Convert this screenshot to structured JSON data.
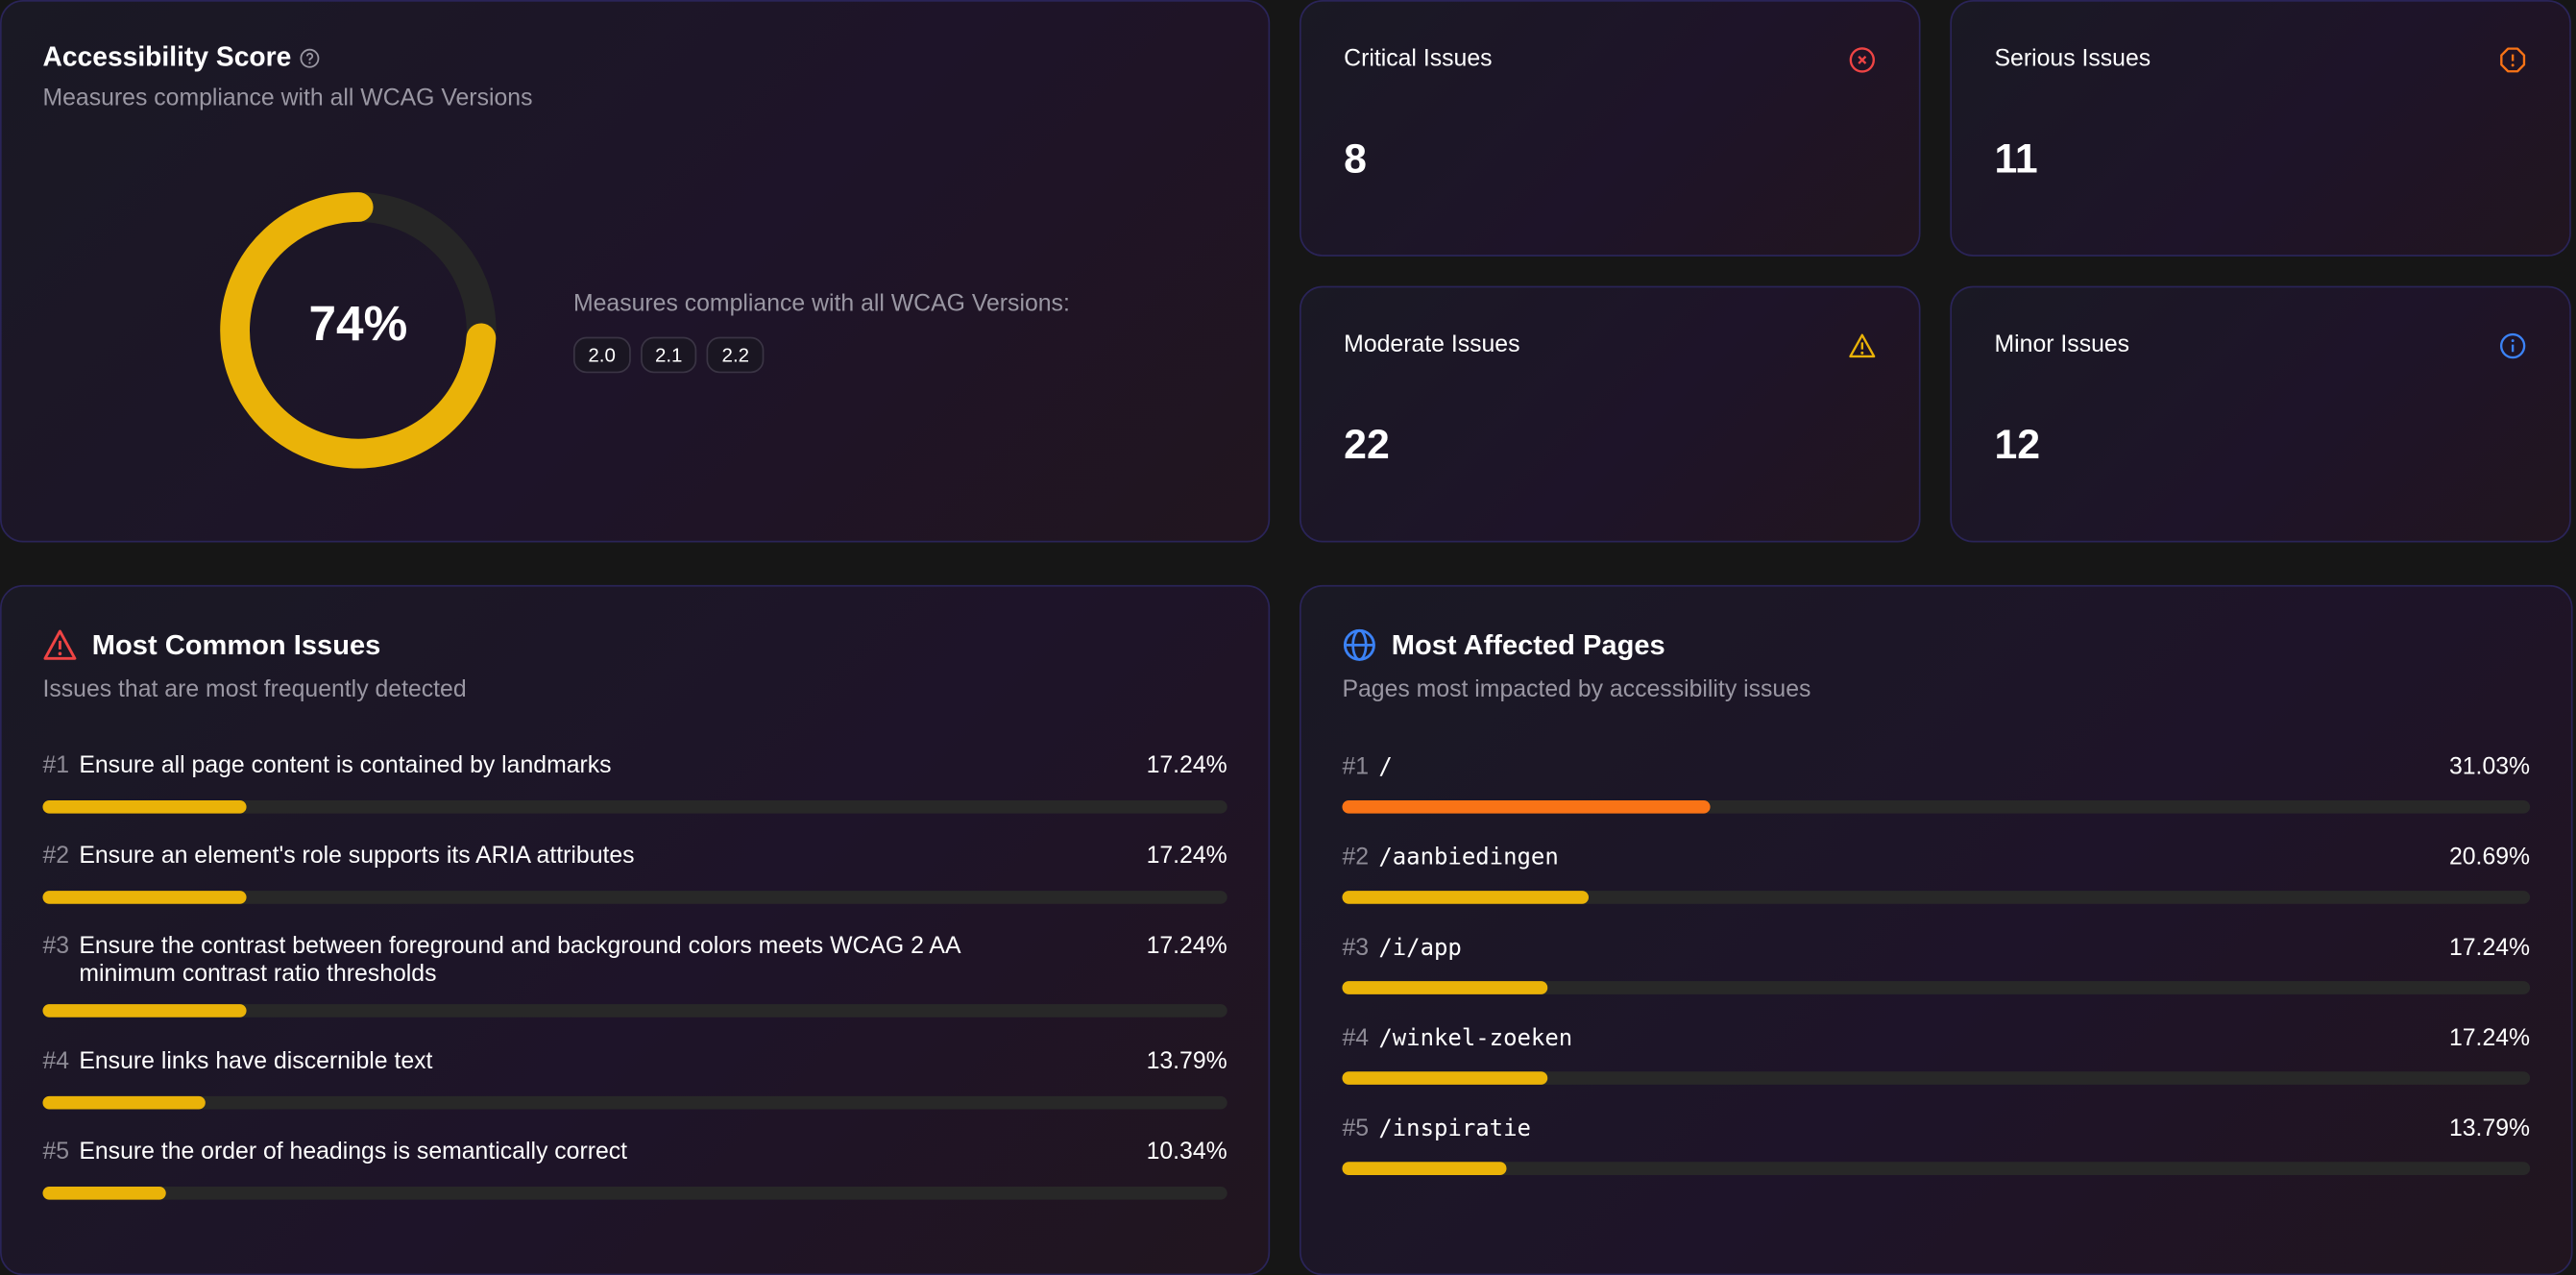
{
  "score": {
    "title": "Accessibility Score",
    "subtitle": "Measures compliance with all WCAG Versions",
    "value_label": "74%",
    "value": 74,
    "versions_label": "Measures compliance with all WCAG Versions:",
    "versions": [
      "2.0",
      "2.1",
      "2.2"
    ],
    "colors": {
      "fill": "#eab308",
      "track": "#262626"
    }
  },
  "issue_counts": [
    {
      "label": "Critical Issues",
      "value": "8",
      "icon": "x-circle-icon",
      "color": "#ef4444"
    },
    {
      "label": "Serious Issues",
      "value": "11",
      "icon": "alert-octagon-icon",
      "color": "#f97316"
    },
    {
      "label": "Moderate Issues",
      "value": "22",
      "icon": "warning-triangle-icon",
      "color": "#eab308"
    },
    {
      "label": "Minor Issues",
      "value": "12",
      "icon": "info-circle-icon",
      "color": "#3b82f6"
    }
  ],
  "common_issues": {
    "title": "Most Common Issues",
    "subtitle": "Issues that are most frequently detected",
    "icon": "warning-triangle-icon",
    "items": [
      {
        "rank": "#1",
        "text": "Ensure all page content is contained by landmarks",
        "pct_label": "17.24%",
        "pct": 17.24,
        "color": "#eab308"
      },
      {
        "rank": "#2",
        "text": "Ensure an element's role supports its ARIA attributes",
        "pct_label": "17.24%",
        "pct": 17.24,
        "color": "#eab308"
      },
      {
        "rank": "#3",
        "text": "Ensure the contrast between foreground and background colors meets WCAG 2 AA minimum contrast ratio thresholds",
        "pct_label": "17.24%",
        "pct": 17.24,
        "color": "#eab308"
      },
      {
        "rank": "#4",
        "text": "Ensure links have discernible text",
        "pct_label": "13.79%",
        "pct": 13.79,
        "color": "#eab308"
      },
      {
        "rank": "#5",
        "text": "Ensure the order of headings is semantically correct",
        "pct_label": "10.34%",
        "pct": 10.34,
        "color": "#eab308"
      }
    ]
  },
  "affected_pages": {
    "title": "Most Affected Pages",
    "subtitle": "Pages most impacted by accessibility issues",
    "icon": "globe-icon",
    "items": [
      {
        "rank": "#1",
        "text": "/",
        "pct_label": "31.03%",
        "pct": 31.03,
        "color": "#f97316"
      },
      {
        "rank": "#2",
        "text": "/aanbiedingen",
        "pct_label": "20.69%",
        "pct": 20.69,
        "color": "#eab308"
      },
      {
        "rank": "#3",
        "text": "/i/app",
        "pct_label": "17.24%",
        "pct": 17.24,
        "color": "#eab308"
      },
      {
        "rank": "#4",
        "text": "/winkel-zoeken",
        "pct_label": "17.24%",
        "pct": 17.24,
        "color": "#eab308"
      },
      {
        "rank": "#5",
        "text": "/inspiratie",
        "pct_label": "13.79%",
        "pct": 13.79,
        "color": "#eab308"
      }
    ]
  }
}
